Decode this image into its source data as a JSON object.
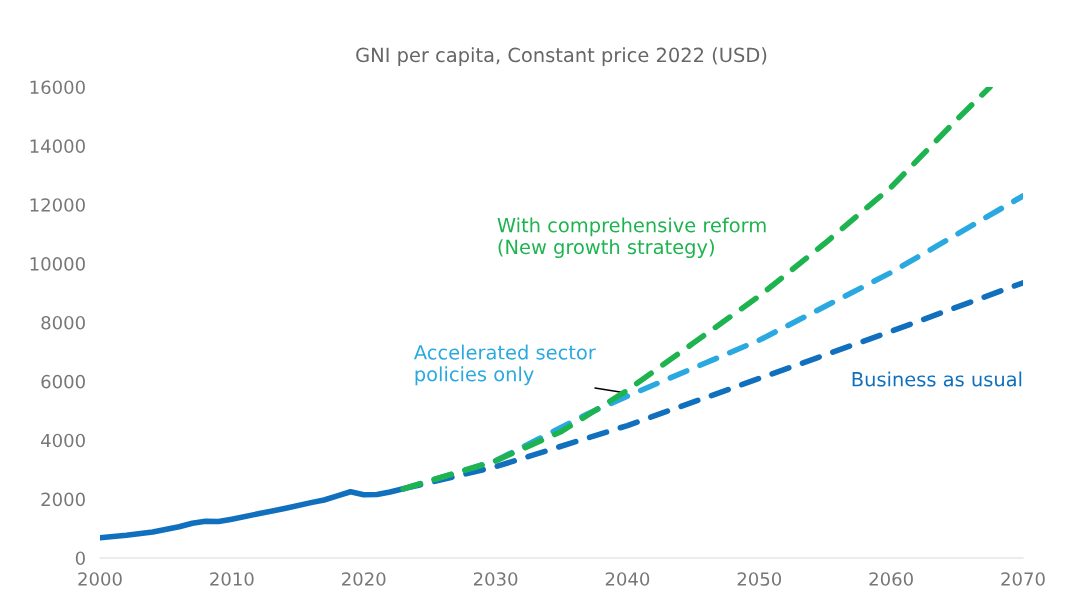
{
  "chart_data": {
    "type": "line",
    "title": "GNI per capita, Constant price 2022 (USD)",
    "xlim": [
      2000,
      2070
    ],
    "xticks": [
      2000,
      2010,
      2020,
      2030,
      2040,
      2050,
      2060,
      2070
    ],
    "ylim": [
      0,
      16000
    ],
    "yticks": [
      0,
      2000,
      4000,
      6000,
      8000,
      10000,
      12000,
      14000,
      16000
    ],
    "grid": false,
    "legend": false,
    "marker": "none",
    "series": [
      {
        "color": "#1170bd",
        "line_style": "solid",
        "x": [
          2000,
          2002,
          2004,
          2006,
          2007,
          2008,
          2009,
          2010,
          2012,
          2014,
          2016,
          2017,
          2018,
          2019,
          2020,
          2021,
          2022,
          2023
        ],
        "values": [
          690,
          770,
          880,
          1060,
          1180,
          1250,
          1240,
          1320,
          1500,
          1680,
          1880,
          1970,
          2110,
          2250,
          2150,
          2160,
          2240,
          2350
        ]
      },
      {
        "name": "Business as usual",
        "color": "#1170bd",
        "line_style": "dashed",
        "x": [
          2023,
          2030,
          2040,
          2050,
          2060,
          2070
        ],
        "values": [
          2350,
          3100,
          4500,
          6100,
          7700,
          9350
        ]
      },
      {
        "name": "Accelerated sector\npolicies only",
        "color": "#29a9e0",
        "line_style": "dashed",
        "x": [
          2023,
          2030,
          2037,
          2040,
          2050,
          2060,
          2070
        ],
        "values": [
          2350,
          3300,
          4900,
          5500,
          7400,
          9700,
          12300
        ]
      },
      {
        "name": "With comprehensive reform\n(New growth strategy)",
        "color": "#1db34f",
        "line_style": "dashed",
        "x": [
          2023,
          2030,
          2035,
          2040,
          2045,
          2050,
          2055,
          2060,
          2065,
          2067.5
        ],
        "values": [
          2350,
          3300,
          4300,
          5700,
          7300,
          8900,
          10700,
          12600,
          14900,
          16000
        ]
      }
    ]
  }
}
